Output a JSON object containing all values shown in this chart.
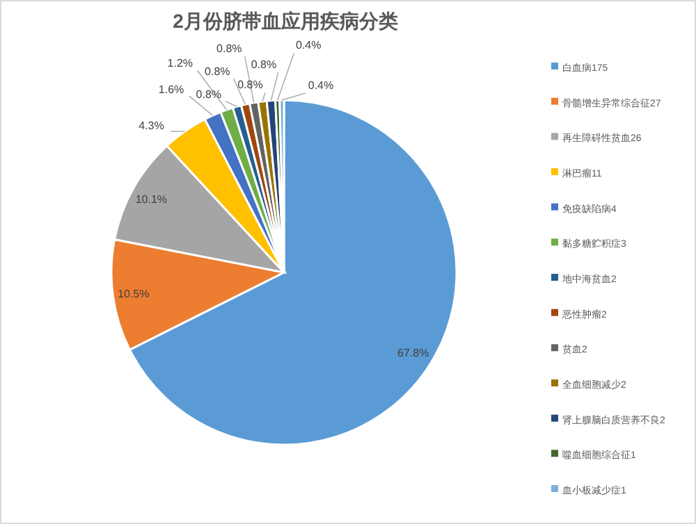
{
  "chart_data": {
    "type": "pie",
    "title": "2月份脐带血应用疾病分类",
    "categories": [
      "白血病175",
      "骨髓增生异常综合征27",
      "再生障碍性贫血26",
      "淋巴瘤11",
      "免疫缺陷病4",
      "黏多糖贮积症3",
      "地中海贫血2",
      "恶性肿瘤2",
      "贫血2",
      "全血细胞减少2",
      "肾上腺脑白质营养不良2",
      "噬血细胞综合征1",
      "血小板减少症1"
    ],
    "values": [
      67.8,
      10.5,
      10.1,
      4.3,
      1.6,
      1.2,
      0.8,
      0.8,
      0.8,
      0.8,
      0.8,
      0.4,
      0.4
    ],
    "value_labels": [
      "67.8%",
      "10.5%",
      "10.1%",
      "4.3%",
      "1.6%",
      "1.2%",
      "0.8%",
      "0.8%",
      "0.8%",
      "0.8%",
      "0.8%",
      "0.4%",
      "0.4%"
    ],
    "colors": [
      "#5b9bd5",
      "#ed7d31",
      "#a5a5a5",
      "#ffc000",
      "#4472c4",
      "#70ad47",
      "#255e91",
      "#9e480e",
      "#636363",
      "#997300",
      "#264478",
      "#43682b",
      "#7cafdd"
    ],
    "legend": "right"
  }
}
